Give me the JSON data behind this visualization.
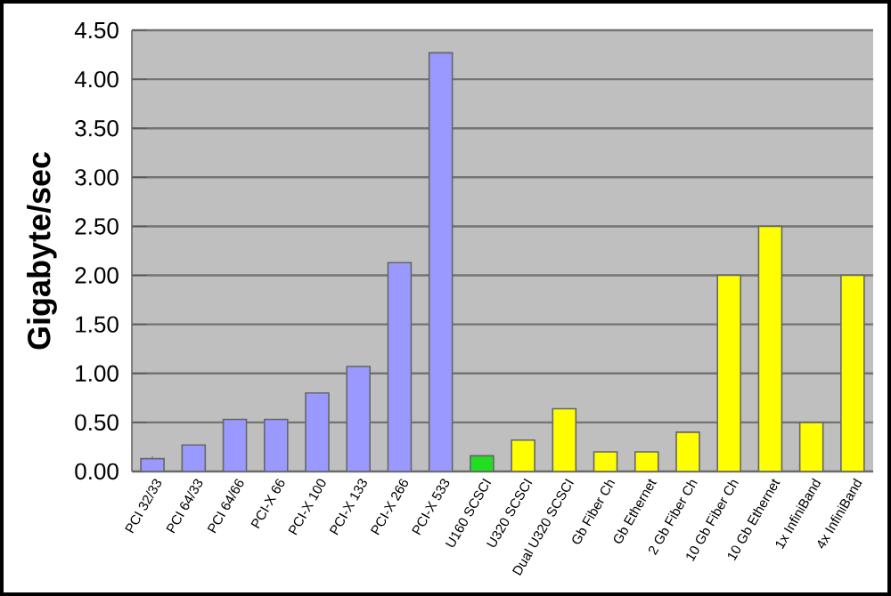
{
  "chart_data": {
    "type": "bar",
    "ylabel": "Gigabyte/sec",
    "categories": [
      "PCI 32/33",
      "PCI 64/33",
      "PCI 64/66",
      "PCI-X 66",
      "PCI-X 100",
      "PCI-X 133",
      "PCI-X 266",
      "PCI-X 533",
      "U160 SCSCI",
      "U320 SCSCI",
      "Dual U320 SCSCI",
      "Gb Fiber Ch",
      "Gb Ethernet",
      "2 Gb Fiber Ch",
      "10 Gb Fiber Ch",
      "10 Gb Ethernet",
      "1x InfiniBand",
      "4x InfiniBand"
    ],
    "values": [
      0.13,
      0.27,
      0.53,
      0.53,
      0.8,
      1.07,
      2.13,
      4.27,
      0.16,
      0.32,
      0.64,
      0.2,
      0.2,
      0.4,
      2.0,
      2.5,
      0.5,
      2.0
    ],
    "colors": [
      "#9999ff",
      "#9999ff",
      "#9999ff",
      "#9999ff",
      "#9999ff",
      "#9999ff",
      "#9999ff",
      "#9999ff",
      "#22dd22",
      "#ffff00",
      "#ffff00",
      "#ffff00",
      "#ffff00",
      "#ffff00",
      "#ffff00",
      "#ffff00",
      "#ffff00",
      "#ffff00"
    ],
    "ylim": [
      0,
      4.5
    ],
    "yticks": [
      {
        "value": 0,
        "label": "0.00"
      },
      {
        "value": 0.5,
        "label": "0.50"
      },
      {
        "value": 1,
        "label": "1.00"
      },
      {
        "value": 1.5,
        "label": "1.50"
      },
      {
        "value": 2,
        "label": "2.00"
      },
      {
        "value": 2.5,
        "label": "2.50"
      },
      {
        "value": 3,
        "label": "3.00"
      },
      {
        "value": 3.5,
        "label": "3.50"
      },
      {
        "value": 4,
        "label": "4.00"
      },
      {
        "value": 4.5,
        "label": "4.50"
      }
    ],
    "grid": "y"
  }
}
